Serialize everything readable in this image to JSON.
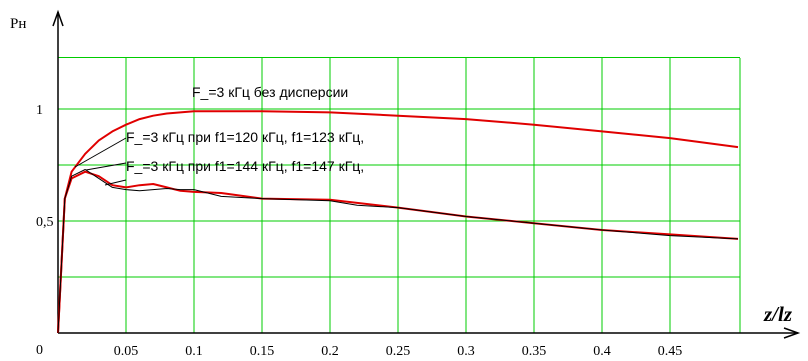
{
  "chart_data": {
    "type": "line",
    "xlabel": "z/lz",
    "ylabel": "Рн",
    "xlim": [
      0,
      0.5
    ],
    "ylim": [
      0,
      1.25
    ],
    "grid": true,
    "grid_color": "#00cc00",
    "x_ticks": [
      "0.05",
      "0.1",
      "0.15",
      "0.2",
      "0.25",
      "0.3",
      "0.35",
      "0.4",
      "0.45"
    ],
    "y_ticks": [
      {
        "value": 0,
        "label": "0"
      },
      {
        "value": 0.5,
        "label": "0,5"
      },
      {
        "value": 1,
        "label": "1"
      }
    ],
    "annotations": [
      {
        "text": "F_=3 кГц без дисперсии",
        "series": 0
      },
      {
        "text": "F_=3 кГц при f1=120 кГц, f1=123 кГц,",
        "series": 1
      },
      {
        "text": "F_=3 кГц при f1=144 кГц, f1=147 кГц,",
        "series": 2
      }
    ],
    "series": [
      {
        "color": "#e00000",
        "points": [
          [
            0,
            0
          ],
          [
            0.005,
            0.6
          ],
          [
            0.01,
            0.72
          ],
          [
            0.02,
            0.8
          ],
          [
            0.03,
            0.86
          ],
          [
            0.04,
            0.9
          ],
          [
            0.05,
            0.93
          ],
          [
            0.06,
            0.955
          ],
          [
            0.07,
            0.97
          ],
          [
            0.08,
            0.98
          ],
          [
            0.09,
            0.985
          ],
          [
            0.1,
            0.99
          ],
          [
            0.15,
            0.99
          ],
          [
            0.2,
            0.985
          ],
          [
            0.25,
            0.97
          ],
          [
            0.3,
            0.955
          ],
          [
            0.35,
            0.93
          ],
          [
            0.4,
            0.9
          ],
          [
            0.45,
            0.87
          ],
          [
            0.5,
            0.83
          ]
        ]
      },
      {
        "color": "#e00000",
        "points": [
          [
            0,
            0
          ],
          [
            0.005,
            0.6
          ],
          [
            0.01,
            0.69
          ],
          [
            0.02,
            0.72
          ],
          [
            0.03,
            0.7
          ],
          [
            0.04,
            0.66
          ],
          [
            0.05,
            0.65
          ],
          [
            0.06,
            0.66
          ],
          [
            0.07,
            0.665
          ],
          [
            0.08,
            0.65
          ],
          [
            0.09,
            0.635
          ],
          [
            0.1,
            0.63
          ],
          [
            0.12,
            0.625
          ],
          [
            0.15,
            0.6
          ],
          [
            0.2,
            0.595
          ],
          [
            0.25,
            0.56
          ],
          [
            0.3,
            0.52
          ],
          [
            0.35,
            0.49
          ],
          [
            0.4,
            0.46
          ],
          [
            0.45,
            0.44
          ],
          [
            0.5,
            0.42
          ]
        ]
      },
      {
        "color": "#000000",
        "points": [
          [
            0,
            0
          ],
          [
            0.005,
            0.6
          ],
          [
            0.01,
            0.7
          ],
          [
            0.02,
            0.73
          ],
          [
            0.03,
            0.69
          ],
          [
            0.04,
            0.65
          ],
          [
            0.05,
            0.64
          ],
          [
            0.06,
            0.635
          ],
          [
            0.07,
            0.64
          ],
          [
            0.08,
            0.645
          ],
          [
            0.09,
            0.64
          ],
          [
            0.1,
            0.64
          ],
          [
            0.12,
            0.61
          ],
          [
            0.15,
            0.6
          ],
          [
            0.2,
            0.59
          ],
          [
            0.22,
            0.57
          ],
          [
            0.25,
            0.56
          ],
          [
            0.3,
            0.52
          ],
          [
            0.35,
            0.49
          ],
          [
            0.4,
            0.46
          ],
          [
            0.45,
            0.435
          ],
          [
            0.5,
            0.42
          ]
        ]
      }
    ]
  }
}
